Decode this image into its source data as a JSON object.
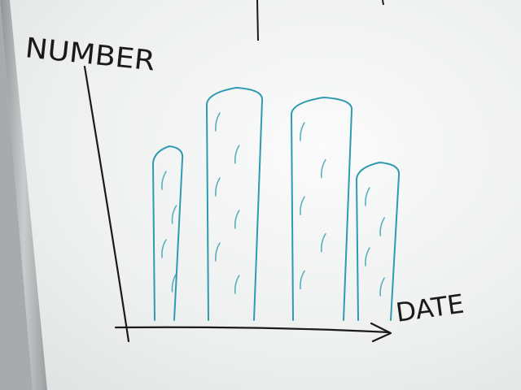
{
  "scene": {
    "subject": "whiteboard-sketch",
    "ink_colors": {
      "black": "#1a1a1a",
      "teal": "#2f9ab0"
    }
  },
  "labels": {
    "y_axis": "NUMBER",
    "x_axis": "DATE"
  },
  "sketch_chart": {
    "type": "bar",
    "bar_count": 4,
    "relative_heights": [
      0.52,
      0.7,
      0.67,
      0.47
    ]
  }
}
